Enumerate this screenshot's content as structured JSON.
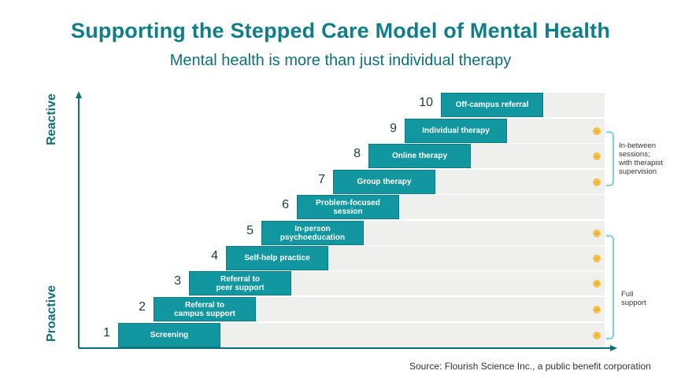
{
  "title": "Supporting the Stepped Care Model of Mental Health",
  "subtitle": "Mental health is more than just individual therapy",
  "axis": {
    "top_label": "Reactive",
    "bottom_label": "Proactive"
  },
  "steps": [
    {
      "number": "1",
      "label": "Screening",
      "indicator": true
    },
    {
      "number": "2",
      "label": "Referral to\ncampus support",
      "indicator": true
    },
    {
      "number": "3",
      "label": "Referral to\npeer support",
      "indicator": true
    },
    {
      "number": "4",
      "label": "Self-help practice",
      "indicator": true
    },
    {
      "number": "5",
      "label": "In-person\npsychoeducation",
      "indicator": true
    },
    {
      "number": "6",
      "label": "Problem-focused\nsession",
      "indicator": false
    },
    {
      "number": "7",
      "label": "Group therapy",
      "indicator": true
    },
    {
      "number": "8",
      "label": "Online therapy",
      "indicator": true
    },
    {
      "number": "9",
      "label": "Individual therapy",
      "indicator": true
    },
    {
      "number": "10",
      "label": "Off-campus referral",
      "indicator": false
    }
  ],
  "brackets": {
    "upper": "In-between\nsessions;\nwith therapist\nsupervision",
    "lower": "Full\nsupport"
  },
  "source": "Source: Flourish Science Inc., a public benefit corporation",
  "colors": {
    "accent": "#1297a0",
    "title": "#0f7e86",
    "indicator": "#f7c04a",
    "bracket": "#7fd0d6"
  }
}
